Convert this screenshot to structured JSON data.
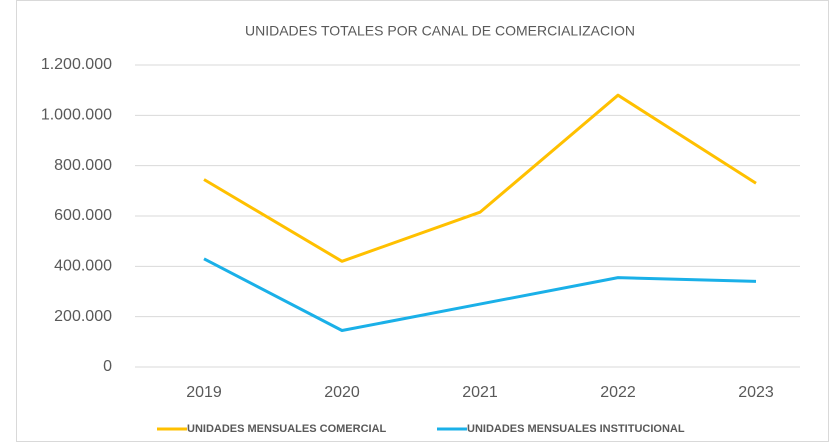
{
  "chart_data": {
    "type": "line",
    "title": "UNIDADES TOTALES POR CANAL DE COMERCIALIZACION",
    "categories": [
      "2019",
      "2020",
      "2021",
      "2022",
      "2023"
    ],
    "series": [
      {
        "name": "UNIDADES MENSUALES COMERCIAL",
        "color": "#FFC000",
        "values": [
          745000,
          420000,
          615000,
          1080000,
          730000
        ]
      },
      {
        "name": "UNIDADES MENSUALES INSTITUCIONAL",
        "color": "#1AB0E8",
        "values": [
          430000,
          145000,
          250000,
          355000,
          340000
        ]
      }
    ],
    "ylim": [
      0,
      1200000
    ],
    "yticks": [
      0,
      {
        "value": 200000,
        "label": "200.000"
      },
      {
        "value": 400000,
        "label": "400.000"
      },
      {
        "value": 600000,
        "label": "600.000"
      },
      {
        "value": 800000,
        "label": "800.000"
      },
      {
        "value": 1000000,
        "label": "1.000.000"
      },
      {
        "value": 1200000,
        "label": "1.200.000"
      }
    ],
    "grid": true,
    "legend": "bottom"
  }
}
